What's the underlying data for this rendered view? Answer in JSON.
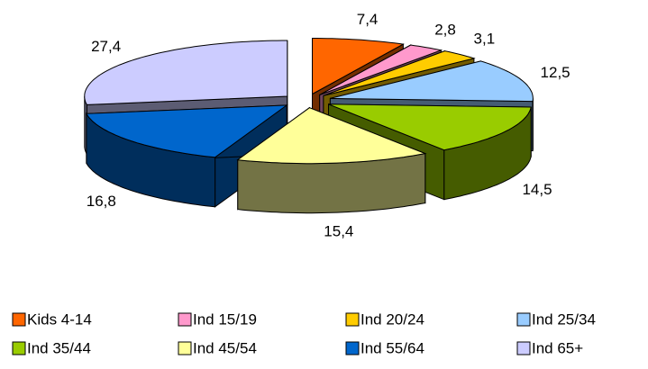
{
  "chart_data": {
    "type": "pie",
    "categories": [
      "Kids 4-14",
      "Ind 15/19",
      "Ind 20/24",
      "Ind 25/34",
      "Ind 35/44",
      "Ind 45/54",
      "Ind 55/64",
      "Ind 65+"
    ],
    "values": [
      7.4,
      2.8,
      3.1,
      12.5,
      14.5,
      15.4,
      16.8,
      27.4
    ],
    "value_labels": [
      "7,4",
      "2,8",
      "3,1",
      "12,5",
      "14,5",
      "15,4",
      "16,8",
      "27,4"
    ],
    "colors": [
      "#FF6600",
      "#FF99CC",
      "#FFCC00",
      "#99CCFF",
      "#99CC00",
      "#FFFF99",
      "#0066CC",
      "#CCCCFF"
    ],
    "legend": "bottom"
  }
}
